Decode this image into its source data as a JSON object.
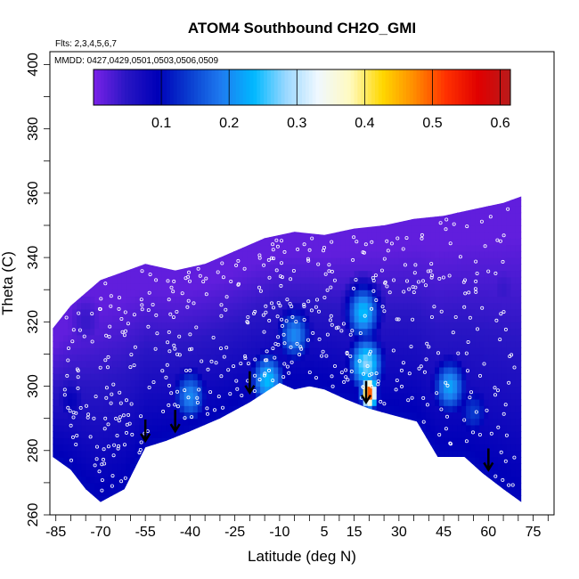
{
  "chart_data": {
    "type": "heatmap",
    "title": "ATOM4 Southbound CH2O_GMI",
    "flights_note": "Flts: 2,3,4,5,6,7",
    "dates_note": "MMDD: 0427,0429,0501,0503,0506,0509",
    "xlabel": "Latitude (deg N)",
    "ylabel": "Theta (C)",
    "xlim": [
      -87,
      82
    ],
    "ylim": [
      260,
      404
    ],
    "x_ticks": [
      -85,
      -70,
      -55,
      -40,
      -25,
      -10,
      5,
      15,
      30,
      45,
      60,
      75
    ],
    "y_ticks": [
      260,
      280,
      300,
      320,
      340,
      360,
      380,
      400
    ],
    "colorbar": {
      "range": [
        0,
        0.615
      ],
      "ticks": [
        0.1,
        0.2,
        0.3,
        0.4,
        0.5,
        0.6
      ],
      "colors": [
        "#7a22e8",
        "#2a16c4",
        "#0000b8",
        "#0a3ed0",
        "#1e7cf0",
        "#00b8ff",
        "#9ad8ff",
        "#f0f8ff",
        "#fffac0",
        "#ffd800",
        "#ff8c00",
        "#ff3000",
        "#e00000",
        "#b81c1c"
      ]
    },
    "domain_top": [
      [
        -86,
        318
      ],
      [
        -80,
        325
      ],
      [
        -70,
        333
      ],
      [
        -55,
        338
      ],
      [
        -45,
        336
      ],
      [
        -35,
        338
      ],
      [
        -25,
        342
      ],
      [
        -15,
        346
      ],
      [
        -5,
        348
      ],
      [
        5,
        347
      ],
      [
        15,
        349
      ],
      [
        25,
        350
      ],
      [
        35,
        352
      ],
      [
        45,
        353
      ],
      [
        55,
        355
      ],
      [
        65,
        357
      ],
      [
        71,
        359
      ]
    ],
    "domain_bottom": [
      [
        -86,
        278
      ],
      [
        -80,
        274
      ],
      [
        -75,
        268
      ],
      [
        -70,
        264
      ],
      [
        -62,
        268
      ],
      [
        -55,
        281
      ],
      [
        -48,
        283
      ],
      [
        -40,
        286
      ],
      [
        -30,
        290
      ],
      [
        -20,
        295
      ],
      [
        -10,
        301
      ],
      [
        -5,
        299
      ],
      [
        0,
        300
      ],
      [
        5,
        299
      ],
      [
        12,
        296
      ],
      [
        20,
        293
      ],
      [
        28,
        291
      ],
      [
        36,
        289
      ],
      [
        43,
        278
      ],
      [
        52,
        278
      ],
      [
        58,
        273
      ],
      [
        65,
        268
      ],
      [
        71,
        264
      ]
    ],
    "features": [
      {
        "lat": 20,
        "theta": 298,
        "value": 0.52
      },
      {
        "lat": 19,
        "theta": 307,
        "value": 0.28
      },
      {
        "lat": 18,
        "theta": 323,
        "value": 0.24
      },
      {
        "lat": -5,
        "theta": 316,
        "value": 0.2
      },
      {
        "lat": -14,
        "theta": 302,
        "value": 0.24
      },
      {
        "lat": -40,
        "theta": 297,
        "value": 0.2
      },
      {
        "lat": 47,
        "theta": 300,
        "value": 0.22
      },
      {
        "lat": 55,
        "theta": 292,
        "value": 0.14
      },
      {
        "lat": -80,
        "theta": 295,
        "value": 0.09
      },
      {
        "lat": 65,
        "theta": 330,
        "value": 0.04
      },
      {
        "lat": -75,
        "theta": 320,
        "value": 0.04
      }
    ],
    "arrows": [
      {
        "lat": -55,
        "theta": 283
      },
      {
        "lat": -45,
        "theta": 286
      },
      {
        "lat": -20,
        "theta": 298
      },
      {
        "lat": 19,
        "theta": 295
      },
      {
        "lat": 60,
        "theta": 274
      }
    ]
  }
}
